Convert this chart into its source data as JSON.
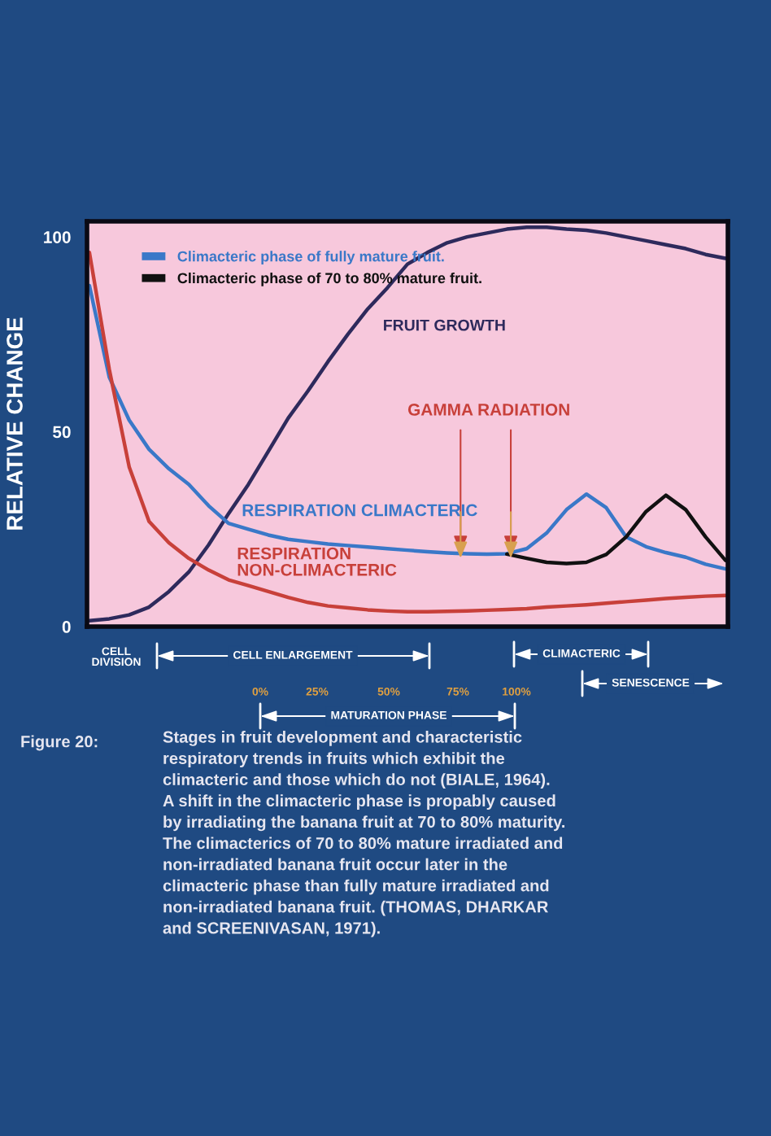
{
  "chart_data": {
    "type": "line",
    "categories": [
      null,
      null,
      null,
      null,
      null,
      null,
      null,
      null,
      null,
      null,
      null,
      null,
      null,
      null,
      null,
      null,
      null,
      null,
      null,
      null,
      null,
      null,
      null,
      null,
      null,
      null,
      null,
      null,
      null,
      null,
      null,
      null,
      null
    ],
    "series": [
      {
        "color": "#2e2a5c",
        "values": [
          1.5,
          2,
          3,
          5,
          9,
          14,
          21,
          29,
          36.5,
          45,
          53.5,
          60.5,
          68,
          75,
          81.5,
          87,
          93,
          96,
          98.5,
          100,
          101,
          102,
          102.5,
          102.5,
          102,
          101.7,
          101,
          100,
          99,
          98,
          97,
          95.5,
          94.5
        ]
      },
      {
        "name": "Climacteric phase of fully mature fruit.",
        "color": "#3a78c8",
        "values": [
          87.5,
          64,
          53,
          45.5,
          40.5,
          36.5,
          31,
          26.5,
          25,
          23.5,
          22.4,
          21.8,
          21.2,
          20.8,
          20.4,
          20,
          19.6,
          19.2,
          18.9,
          18.7,
          18.6,
          18.7,
          20,
          24,
          30,
          34,
          30.5,
          23,
          20.5,
          19,
          17.8,
          16,
          14.8
        ]
      },
      {
        "name": "Climacteric phase of 70 to 80% mature fruit.",
        "color": "#111111",
        "values": [
          null,
          null,
          null,
          null,
          null,
          null,
          null,
          null,
          null,
          null,
          null,
          null,
          null,
          null,
          null,
          null,
          null,
          null,
          null,
          null,
          null,
          18.6,
          17.5,
          16.5,
          16.2,
          16.5,
          18.5,
          23,
          29.5,
          33.7,
          30,
          23,
          17
        ]
      },
      {
        "color": "#c8403a",
        "values": [
          96,
          66,
          41,
          27,
          21.5,
          17.5,
          14.5,
          12,
          10.5,
          9,
          7.5,
          6.2,
          5.3,
          4.8,
          4.3,
          4,
          3.8,
          3.8,
          3.9,
          4,
          4.2,
          4.4,
          4.6,
          5,
          5.3,
          5.6,
          6,
          6.4,
          6.8,
          7.2,
          7.5,
          7.8,
          8
        ]
      }
    ],
    "ylabel": "RELATIVE CHANGE",
    "ylim": [
      0,
      104
    ],
    "yticks": [
      0,
      50,
      100
    ],
    "grid": false,
    "legend": "top left",
    "line_style": "solid",
    "annotations": [
      "FRUIT GROWTH",
      "GAMMA RADIATION",
      "RESPIRATION CLIMACTERIC",
      "RESPIRATION\nNON-CLIMACTERIC",
      "CELL\nDIVISION",
      "CELL ENLARGEMENT",
      "CLIMACTERIC",
      "SENESCENCE",
      "0%",
      "25%",
      "50%",
      "75%",
      "100%",
      "MATURATION PHASE",
      "Figure 20:",
      "Stages in fruit development and characteristic\nrespiratory trends in fruits which exhibit the\nclimacteric and those which do not (BIALE, 1964).\nA shift in the climacteric phase is propably caused\nby irradiating the banana fruit at 70 to 80% maturity.\nThe climacterics of 70 to 80% mature irradiated and\nnon-irradiated banana fruit occur later in the\nclimacteric phase than fully mature irradiated and\nnon-irradiated banana fruit. (THOMAS, DHARKAR\nand SCREENIVASAN, 1971)."
    ]
  }
}
